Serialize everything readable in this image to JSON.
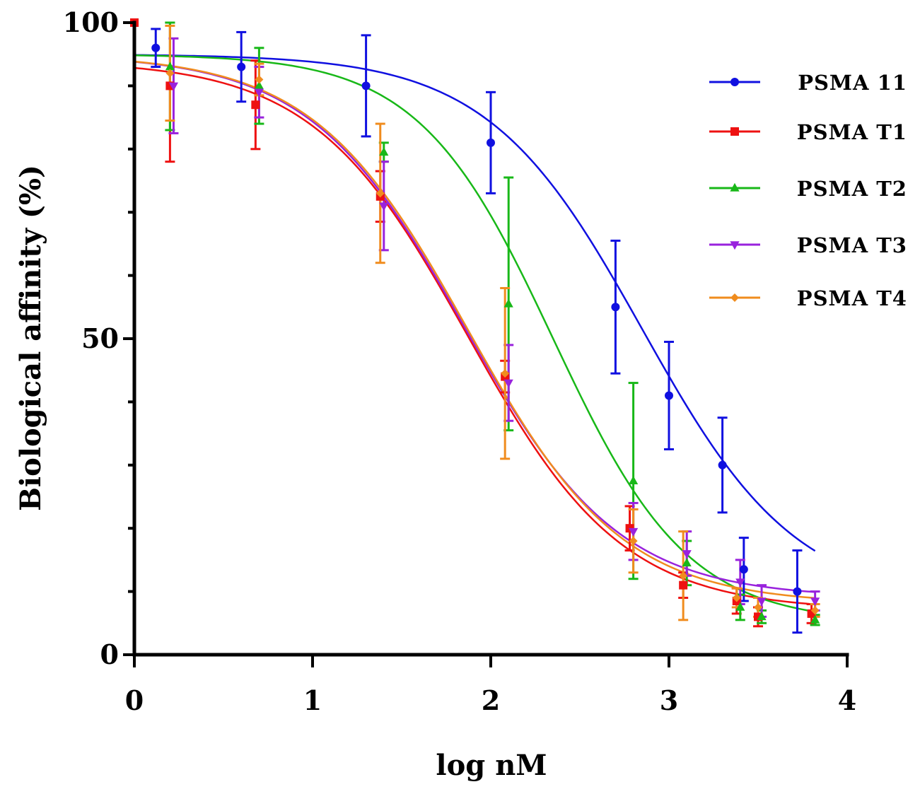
{
  "chart_data": {
    "type": "line",
    "title": "",
    "xlabel": "log nM",
    "ylabel": "Biological affinity (%)",
    "xlim": [
      0,
      4
    ],
    "ylim": [
      0,
      100
    ],
    "xticks": [
      "0",
      "1",
      "2",
      "3",
      "4"
    ],
    "yticks": [
      "0",
      "50",
      "100"
    ],
    "grid": false,
    "legend_position": "top-right",
    "series": [
      {
        "name": "PSMA 11",
        "color": "#1010e0",
        "marker": "circle",
        "points": [
          {
            "x": 0.0,
            "y": 100,
            "err": 0
          },
          {
            "x": 0.12,
            "y": 96,
            "err": 3
          },
          {
            "x": 0.6,
            "y": 93,
            "err": 5.5
          },
          {
            "x": 1.3,
            "y": 90,
            "err": 8
          },
          {
            "x": 2.0,
            "y": 81,
            "err": 8
          },
          {
            "x": 2.7,
            "y": 55,
            "err": 10.5
          },
          {
            "x": 3.0,
            "y": 41,
            "err": 8.5
          },
          {
            "x": 3.3,
            "y": 30,
            "err": 7.5
          },
          {
            "x": 3.42,
            "y": 13.5,
            "err": 5
          },
          {
            "x": 3.72,
            "y": 10,
            "err": 6.5
          }
        ],
        "fit": {
          "top": 95,
          "bottom": 8,
          "logIC50": 2.85,
          "hill": -1.0
        }
      },
      {
        "name": "PSMA T1",
        "color": "#ee1111",
        "marker": "square",
        "points": [
          {
            "x": 0.0,
            "y": 100,
            "err": 0
          },
          {
            "x": 0.2,
            "y": 90,
            "err": 12
          },
          {
            "x": 0.68,
            "y": 87,
            "err": 7
          },
          {
            "x": 1.38,
            "y": 72.5,
            "err": 4
          },
          {
            "x": 2.08,
            "y": 44,
            "err": 2.5
          },
          {
            "x": 2.78,
            "y": 20,
            "err": 3.5
          },
          {
            "x": 3.08,
            "y": 11,
            "err": 2
          },
          {
            "x": 3.38,
            "y": 8.5,
            "err": 2
          },
          {
            "x": 3.5,
            "y": 6,
            "err": 1.5
          },
          {
            "x": 3.8,
            "y": 6.5,
            "err": 1.5
          }
        ],
        "fit": {
          "top": 94,
          "bottom": 7,
          "logIC50": 1.87,
          "hill": -1.0
        }
      },
      {
        "name": "PSMA T2",
        "color": "#18b818",
        "marker": "triangle-up",
        "points": [
          {
            "x": 0.2,
            "y": 93,
            "err": 10
          },
          {
            "x": 0.7,
            "y": 90,
            "err": 6
          },
          {
            "x": 1.4,
            "y": 79.5,
            "err": 1.5
          },
          {
            "x": 2.1,
            "y": 55.5,
            "err": 20
          },
          {
            "x": 2.8,
            "y": 27.5,
            "err": 15.5
          },
          {
            "x": 3.1,
            "y": 14.5,
            "err": 3.5
          },
          {
            "x": 3.4,
            "y": 7.5,
            "err": 2
          },
          {
            "x": 3.52,
            "y": 6,
            "err": 1
          },
          {
            "x": 3.82,
            "y": 5.5,
            "err": 0.8
          }
        ],
        "fit": {
          "top": 95,
          "bottom": 5,
          "logIC50": 2.35,
          "hill": -1.15
        }
      },
      {
        "name": "PSMA T3",
        "color": "#9922dd",
        "marker": "triangle-down",
        "points": [
          {
            "x": 0.22,
            "y": 90,
            "err": 7.5
          },
          {
            "x": 0.7,
            "y": 89,
            "err": 4
          },
          {
            "x": 1.4,
            "y": 71,
            "err": 7
          },
          {
            "x": 2.1,
            "y": 43,
            "err": 6
          },
          {
            "x": 2.8,
            "y": 19.5,
            "err": 4.5
          },
          {
            "x": 3.1,
            "y": 16,
            "err": 3.5
          },
          {
            "x": 3.4,
            "y": 11.5,
            "err": 3.5
          },
          {
            "x": 3.52,
            "y": 8.5,
            "err": 2.5
          },
          {
            "x": 3.82,
            "y": 8.5,
            "err": 1.5
          }
        ],
        "fit": {
          "top": 95,
          "bottom": 9,
          "logIC50": 1.85,
          "hill": -1.0
        }
      },
      {
        "name": "PSMA T4",
        "color": "#f08c1e",
        "marker": "diamond",
        "points": [
          {
            "x": 0.2,
            "y": 92,
            "err": 7.5
          },
          {
            "x": 0.7,
            "y": 91,
            "err": 2.5
          },
          {
            "x": 1.38,
            "y": 73,
            "err": 11
          },
          {
            "x": 2.08,
            "y": 44.5,
            "err": 13.5
          },
          {
            "x": 2.8,
            "y": 18,
            "err": 5
          },
          {
            "x": 3.08,
            "y": 12.5,
            "err": 7
          },
          {
            "x": 3.38,
            "y": 9,
            "err": 1.5
          },
          {
            "x": 3.5,
            "y": 7.5,
            "err": 1.5
          },
          {
            "x": 3.82,
            "y": 7,
            "err": 1
          }
        ],
        "fit": {
          "top": 95,
          "bottom": 8,
          "logIC50": 1.87,
          "hill": -1.0
        }
      }
    ]
  }
}
